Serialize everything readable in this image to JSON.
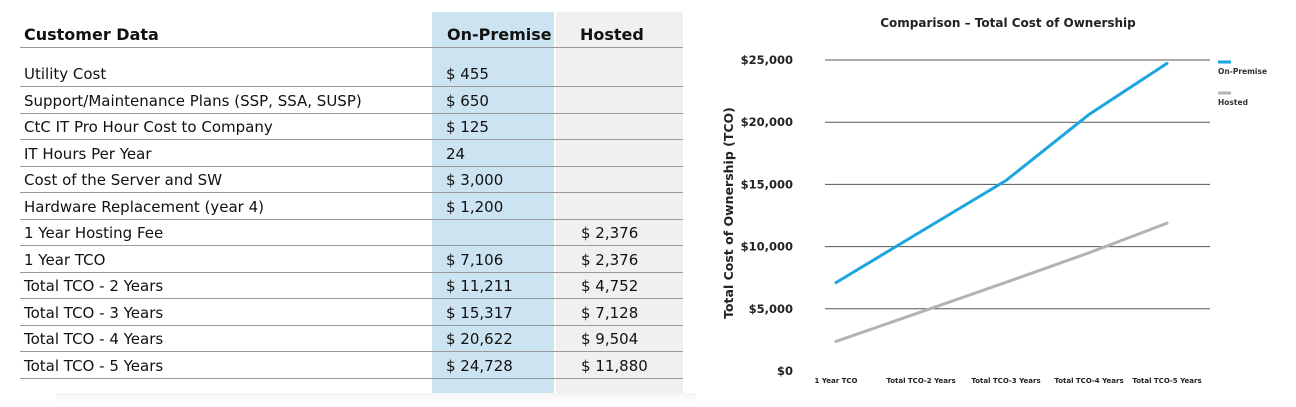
{
  "table": {
    "headers": {
      "label": "Customer Data",
      "onprem": "On-Premise",
      "hosted": "Hosted"
    },
    "rows": [
      {
        "label": "Utility Cost",
        "onprem": "$ 455",
        "hosted": ""
      },
      {
        "label": "Support/Maintenance Plans (SSP, SSA, SUSP)",
        "onprem": "$ 650",
        "hosted": ""
      },
      {
        "label": "CtC IT Pro Hour Cost to Company",
        "onprem": "$ 125",
        "hosted": ""
      },
      {
        "label": "IT Hours Per Year",
        "onprem": "24",
        "hosted": ""
      },
      {
        "label": "Cost of the Server and SW",
        "onprem": "$ 3,000",
        "hosted": ""
      },
      {
        "label": "Hardware Replacement (year 4)",
        "onprem": "$ 1,200",
        "hosted": ""
      },
      {
        "label": "1 Year Hosting Fee",
        "onprem": "",
        "hosted": "$ 2,376"
      },
      {
        "label": "1 Year  TCO",
        "onprem": "$ 7,106",
        "hosted": "$ 2,376"
      },
      {
        "label": "Total TCO - 2 Years",
        "onprem": "$ 11,211",
        "hosted": "$ 4,752"
      },
      {
        "label": "Total TCO - 3 Years",
        "onprem": "$ 15,317",
        "hosted": "$ 7,128"
      },
      {
        "label": "Total TCO - 4 Years",
        "onprem": "$ 20,622",
        "hosted": "$ 9,504"
      },
      {
        "label": "Total TCO - 5 Years",
        "onprem": "$ 24,728",
        "hosted": "$ 11,880"
      }
    ]
  },
  "chart_data": {
    "type": "line",
    "title": "Comparison – Total Cost of Ownership",
    "xlabel": "",
    "ylabel": "Total Cost of Ownership (TCO)",
    "categories": [
      "1 Year TCO",
      "Total TCO-2 Years",
      "Total TCO-3 Years",
      "Total TCO-4 Years",
      "Total TCO-5 Years"
    ],
    "series": [
      {
        "name": "On-Premise",
        "values": [
          7106,
          11211,
          15317,
          20622,
          24728
        ],
        "color": "#1ba6e0"
      },
      {
        "name": "Hosted",
        "values": [
          2376,
          4752,
          7128,
          9504,
          11880
        ],
        "color": "#b3b3b3"
      }
    ],
    "ylim": [
      0,
      25000
    ],
    "yticks": [
      0,
      5000,
      10000,
      15000,
      20000,
      25000
    ],
    "ytick_labels": [
      "$0",
      "$5,000",
      "$10,000",
      "$15,000",
      "$20,000",
      "$25,000"
    ],
    "grid": true,
    "legend": "top-right"
  }
}
